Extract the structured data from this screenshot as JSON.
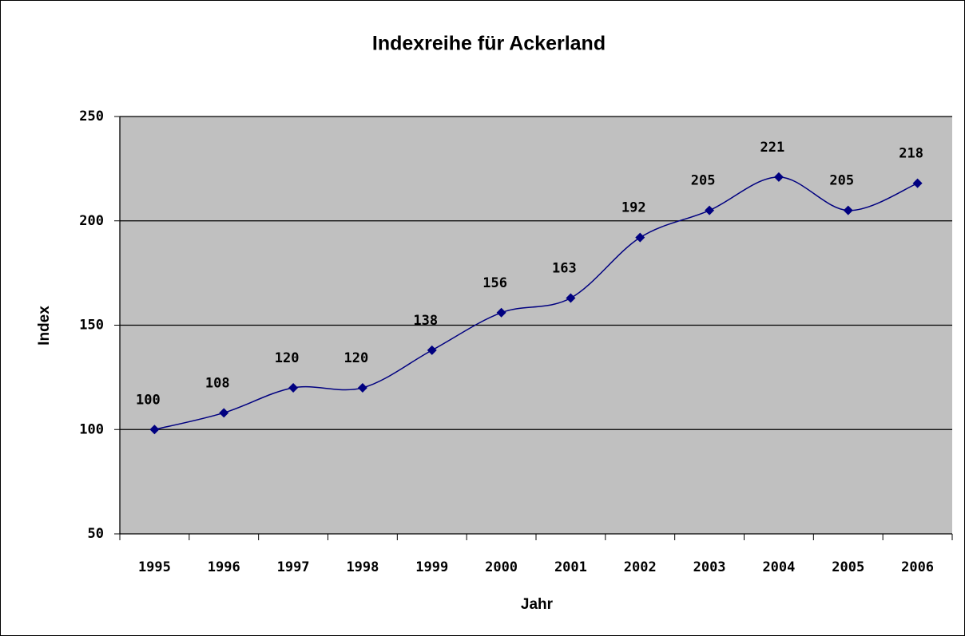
{
  "chart_data": {
    "type": "line",
    "title": "Indexreihe für Ackerland",
    "x_label": "Jahr",
    "y_label": "Index",
    "categories": [
      "1995",
      "1996",
      "1997",
      "1998",
      "1999",
      "2000",
      "2001",
      "2002",
      "2003",
      "2004",
      "2005",
      "2006"
    ],
    "series": [
      {
        "name": "Index",
        "color": "#000080",
        "values": [
          100,
          108,
          120,
          120,
          138,
          156,
          163,
          192,
          205,
          221,
          205,
          218
        ]
      }
    ],
    "ylim": [
      50,
      250
    ],
    "yticks": [
      50,
      100,
      150,
      200,
      250
    ],
    "grid": true,
    "plot_background": "#c0c0c0"
  }
}
